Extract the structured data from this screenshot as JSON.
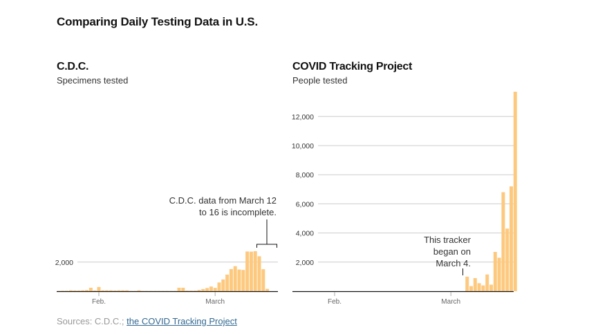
{
  "title": "Comparing Daily Testing Data in U.S.",
  "colors": {
    "bar": "#fdc97f",
    "grid": "#cccccc",
    "axis": "#121212",
    "link": "#326891"
  },
  "sources": {
    "prefix": "Sources: C.D.C.;",
    "link_text": "the COVID Tracking Project"
  },
  "chart_data": [
    {
      "type": "bar",
      "title": "C.D.C.",
      "subtitle": "Specimens tested",
      "xlabel": "",
      "ylabel": "",
      "x_ticks": [
        {
          "label": "Feb.",
          "day": 11
        },
        {
          "label": "March",
          "day": 40
        }
      ],
      "y_ticks": [
        2000
      ],
      "y_tick_labels": [
        "2,000"
      ],
      "ylim": [
        0,
        13700
      ],
      "grid": true,
      "x_start_date": "Jan. 22",
      "x_end_date": "March 16",
      "categories": [
        "Jan 22",
        "Jan 23",
        "Jan 24",
        "Jan 25",
        "Jan 26",
        "Jan 27",
        "Jan 28",
        "Jan 29",
        "Jan 30",
        "Jan 31",
        "Feb 1",
        "Feb 2",
        "Feb 3",
        "Feb 4",
        "Feb 5",
        "Feb 6",
        "Feb 7",
        "Feb 8",
        "Feb 9",
        "Feb 10",
        "Feb 11",
        "Feb 12",
        "Feb 13",
        "Feb 14",
        "Feb 15",
        "Feb 16",
        "Feb 17",
        "Feb 18",
        "Feb 19",
        "Feb 20",
        "Feb 21",
        "Feb 22",
        "Feb 23",
        "Feb 24",
        "Feb 25",
        "Feb 26",
        "Feb 27",
        "Feb 28",
        "Feb 29",
        "Mar 1",
        "Mar 2",
        "Mar 3",
        "Mar 4",
        "Mar 5",
        "Mar 6",
        "Mar 7",
        "Mar 8",
        "Mar 9",
        "Mar 10",
        "Mar 11",
        "Mar 12",
        "Mar 13",
        "Mar 14",
        "Mar 15",
        "Mar 16"
      ],
      "values": [
        20,
        30,
        30,
        60,
        50,
        50,
        60,
        80,
        240,
        50,
        290,
        60,
        60,
        60,
        50,
        60,
        60,
        60,
        20,
        20,
        60,
        20,
        20,
        20,
        20,
        20,
        20,
        20,
        20,
        20,
        240,
        240,
        40,
        40,
        40,
        90,
        150,
        220,
        320,
        230,
        600,
        810,
        1140,
        1520,
        1720,
        1490,
        1460,
        2730,
        2720,
        2750,
        2400,
        1510,
        160,
        0,
        0
      ],
      "annotation": {
        "lines": [
          "C.D.C. data from March 12",
          "to 16 is incomplete."
        ],
        "bracket_from": "Mar 12",
        "bracket_to": "Mar 16"
      }
    },
    {
      "type": "bar",
      "title": "COVID Tracking Project",
      "subtitle": "People tested",
      "xlabel": "",
      "ylabel": "",
      "x_ticks": [
        {
          "label": "Feb.",
          "day": 11
        },
        {
          "label": "March",
          "day": 40
        }
      ],
      "y_ticks": [
        2000,
        4000,
        6000,
        8000,
        10000,
        12000
      ],
      "y_tick_labels": [
        "2,000",
        "4,000",
        "6,000",
        "8,000",
        "10,000",
        "12,000"
      ],
      "ylim": [
        0,
        13700
      ],
      "grid": true,
      "x_start_date": "Jan. 22",
      "x_end_date": "March 16",
      "categories": [
        "Mar 4",
        "Mar 5",
        "Mar 6",
        "Mar 7",
        "Mar 8",
        "Mar 9",
        "Mar 10",
        "Mar 11",
        "Mar 12",
        "Mar 13",
        "Mar 14",
        "Mar 15",
        "Mar 16"
      ],
      "start_day_index": 43,
      "values": [
        1000,
        350,
        900,
        550,
        400,
        1150,
        450,
        2700,
        2300,
        6800,
        4300,
        7200,
        13700
      ],
      "annotation": {
        "lines": [
          "This tracker",
          "began on",
          "March 4."
        ],
        "points_to": "Mar 4"
      }
    }
  ]
}
